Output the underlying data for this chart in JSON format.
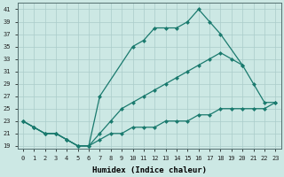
{
  "xlabel": "Humidex (Indice chaleur)",
  "color": "#1a7a6e",
  "bg_color": "#cce8e4",
  "grid_color": "#aaccca",
  "ylim": [
    18.5,
    42
  ],
  "xlim": [
    -0.5,
    23.5
  ],
  "yticks": [
    19,
    21,
    23,
    25,
    27,
    29,
    31,
    33,
    35,
    37,
    39,
    41
  ],
  "xticks": [
    0,
    1,
    2,
    3,
    4,
    5,
    6,
    7,
    8,
    9,
    10,
    11,
    12,
    13,
    14,
    15,
    16,
    17,
    18,
    19,
    20,
    21,
    22,
    23
  ],
  "x_max": [
    0,
    1,
    2,
    3,
    4,
    5,
    6,
    7,
    10,
    11,
    12,
    13,
    14,
    15,
    16,
    17,
    18,
    20
  ],
  "y_max": [
    23,
    22,
    21,
    21,
    20,
    19,
    19,
    27,
    35,
    36,
    38,
    38,
    38,
    39,
    41,
    39,
    37,
    32
  ],
  "x_mid": [
    0,
    1,
    2,
    3,
    4,
    5,
    6,
    7,
    8,
    9,
    10,
    11,
    12,
    13,
    14,
    15,
    16,
    17,
    18,
    19,
    20,
    21,
    22,
    23
  ],
  "y_mid": [
    23,
    22,
    21,
    21,
    20,
    19,
    19,
    21,
    23,
    25,
    26,
    27,
    28,
    29,
    30,
    31,
    32,
    33,
    34,
    33,
    32,
    29,
    26,
    26
  ],
  "x_min": [
    0,
    1,
    2,
    3,
    4,
    5,
    6,
    7,
    8,
    9,
    10,
    11,
    12,
    13,
    14,
    15,
    16,
    17,
    18,
    19,
    20,
    21,
    22,
    23
  ],
  "y_min": [
    23,
    22,
    21,
    21,
    20,
    19,
    19,
    20,
    21,
    21,
    22,
    22,
    22,
    23,
    23,
    23,
    24,
    24,
    25,
    25,
    25,
    25,
    25,
    26
  ]
}
